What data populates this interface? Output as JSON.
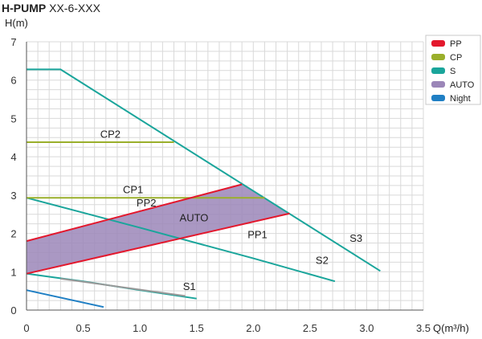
{
  "chart_data": {
    "type": "line",
    "title_bold": "H-PUMP",
    "title_rest": " XX-6-XXX",
    "ylabel": "H(m)",
    "xlabel": "Q(m³/h)",
    "xlim": [
      0,
      3.5
    ],
    "ylim": [
      0,
      7
    ],
    "x_ticks": [
      "0",
      "0.5",
      "1.0",
      "1.5",
      "2.0",
      "2.5",
      "3.0",
      "3.5"
    ],
    "y_ticks": [
      "0",
      "1",
      "2",
      "3",
      "4",
      "5",
      "6",
      "7"
    ],
    "grid": true,
    "legend_position": "top-right",
    "legend": [
      {
        "name": "PP",
        "color": "#e3182d"
      },
      {
        "name": "CP",
        "color": "#9aaf2b"
      },
      {
        "name": "S",
        "color": "#1aa59b"
      },
      {
        "name": "AUTO",
        "color": "#9b86b8"
      },
      {
        "name": "Night",
        "color": "#1f7fc4"
      }
    ],
    "auto_area": {
      "name": "AUTO",
      "color": "#9b86b8",
      "polygon": [
        [
          0,
          1.8
        ],
        [
          1.9,
          3.28
        ],
        [
          2.32,
          2.52
        ],
        [
          0,
          0.95
        ]
      ]
    },
    "series": [
      {
        "group": "S",
        "label": "S3",
        "color": "#1aa59b",
        "points": [
          [
            0,
            6.28
          ],
          [
            0.3,
            6.28
          ],
          [
            3.12,
            1.02
          ]
        ]
      },
      {
        "group": "S",
        "label": "S2",
        "color": "#1aa59b",
        "points": [
          [
            0,
            2.93
          ],
          [
            1.0,
            2.15
          ],
          [
            2.0,
            1.35
          ],
          [
            2.72,
            0.75
          ]
        ]
      },
      {
        "group": "S",
        "label": "S1",
        "color": "#1aa59b",
        "points": [
          [
            0,
            0.95
          ],
          [
            0.5,
            0.75
          ],
          [
            1.0,
            0.52
          ],
          [
            1.5,
            0.3
          ]
        ]
      },
      {
        "group": "S",
        "label": "",
        "color": "#999999",
        "points": [
          [
            0.3,
            0.82
          ],
          [
            1.4,
            0.37
          ]
        ]
      },
      {
        "group": "CP",
        "label": "CP2",
        "color": "#9aaf2b",
        "points": [
          [
            0,
            4.38
          ],
          [
            1.3,
            4.38
          ]
        ]
      },
      {
        "group": "CP",
        "label": "CP1",
        "color": "#9aaf2b",
        "points": [
          [
            0,
            2.93
          ],
          [
            2.1,
            2.93
          ]
        ]
      },
      {
        "group": "PP",
        "label": "PP2",
        "color": "#e3182d",
        "points": [
          [
            0,
            1.8
          ],
          [
            1.9,
            3.28
          ]
        ]
      },
      {
        "group": "PP",
        "label": "PP1",
        "color": "#e3182d",
        "points": [
          [
            0,
            0.95
          ],
          [
            2.32,
            2.52
          ]
        ]
      },
      {
        "group": "Night",
        "label": "",
        "color": "#1f7fc4",
        "points": [
          [
            0,
            0.52
          ],
          [
            0.68,
            0.08
          ]
        ]
      }
    ],
    "annotations": [
      {
        "text": "S3",
        "x": 2.85,
        "y": 1.78
      },
      {
        "text": "S2",
        "x": 2.55,
        "y": 1.2
      },
      {
        "text": "S1",
        "x": 1.38,
        "y": 0.52
      },
      {
        "text": "CP2",
        "x": 0.65,
        "y": 4.5
      },
      {
        "text": "CP1",
        "x": 0.85,
        "y": 3.05
      },
      {
        "text": "PP2",
        "x": 0.97,
        "y": 2.7
      },
      {
        "text": "AUTO",
        "x": 1.35,
        "y": 2.32
      },
      {
        "text": "PP1",
        "x": 1.95,
        "y": 1.88
      }
    ]
  }
}
